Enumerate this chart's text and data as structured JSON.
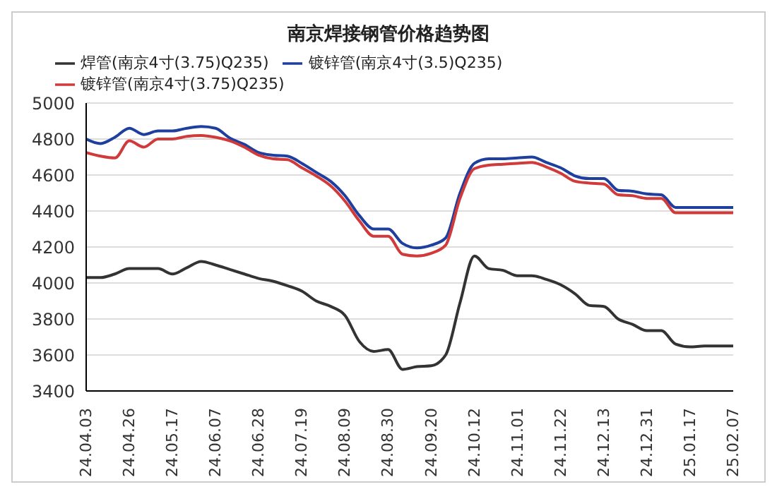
{
  "chart_data": {
    "type": "line",
    "title": "南京焊接钢管价格趋势图",
    "categories": [
      "24.04.03",
      null,
      null,
      "24.04.26",
      null,
      null,
      "24.05.17",
      null,
      null,
      "24.06.07",
      null,
      null,
      "24.06.28",
      null,
      null,
      "24.07.19",
      null,
      null,
      "24.08.09",
      null,
      null,
      "24.08.30",
      null,
      null,
      "24.09.20",
      null,
      null,
      "24.10.12",
      null,
      null,
      "24.11.01",
      null,
      null,
      "24.11.22",
      null,
      null,
      "24.12.13",
      null,
      null,
      "24.12.31",
      null,
      null,
      "25.01.17",
      null,
      null,
      "25.02.07"
    ],
    "series": [
      {
        "name": "焊管(南京4寸(3.75)Q235)",
        "color": "#333333",
        "values": [
          4030,
          4030,
          4050,
          4080,
          4080,
          4080,
          4050,
          4085,
          4120,
          4100,
          4075,
          4050,
          4025,
          4010,
          3985,
          3955,
          3900,
          3870,
          3820,
          3675,
          3620,
          3630,
          3520,
          3535,
          3540,
          3600,
          3890,
          4150,
          4080,
          4070,
          4040,
          4040,
          4020,
          3990,
          3940,
          3875,
          3870,
          3800,
          3770,
          3735,
          3735,
          3660,
          3645,
          3650,
          3650,
          3650
        ]
      },
      {
        "name": "镀锌管(南京4寸(3.5)Q235)",
        "color": "#1f3f9f",
        "values": [
          4800,
          4775,
          4810,
          4860,
          4825,
          4845,
          4845,
          4860,
          4870,
          4860,
          4805,
          4770,
          4725,
          4710,
          4705,
          4665,
          4615,
          4565,
          4485,
          4375,
          4300,
          4300,
          4220,
          4195,
          4210,
          4250,
          4500,
          4665,
          4690,
          4690,
          4695,
          4700,
          4670,
          4640,
          4595,
          4580,
          4580,
          4515,
          4510,
          4495,
          4490,
          4420,
          4420,
          4420,
          4420,
          4420
        ]
      },
      {
        "name": "镀锌管(南京4寸(3.75)Q235)",
        "color": "#d03a3a",
        "values": [
          4725,
          4705,
          4695,
          4790,
          4755,
          4800,
          4800,
          4815,
          4820,
          4810,
          4790,
          4755,
          4710,
          4690,
          4685,
          4640,
          4595,
          4540,
          4455,
          4345,
          4260,
          4260,
          4160,
          4150,
          4165,
          4210,
          4470,
          4635,
          4655,
          4660,
          4665,
          4670,
          4645,
          4610,
          4565,
          4555,
          4550,
          4490,
          4485,
          4470,
          4470,
          4390,
          4390,
          4390,
          4390,
          4390
        ]
      }
    ],
    "ylim": [
      3400,
      5000
    ],
    "yticks": [
      3400,
      3600,
      3800,
      4000,
      4200,
      4400,
      4600,
      4800,
      5000
    ],
    "grid": "y",
    "legend": "top",
    "marker": "none",
    "line_style": "solid"
  }
}
